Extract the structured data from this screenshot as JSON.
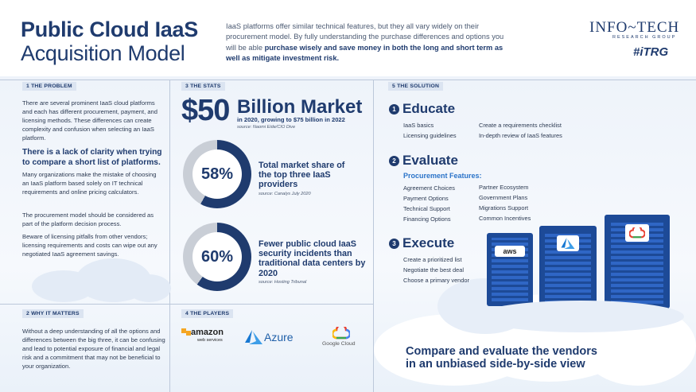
{
  "header": {
    "title_line1": "Public Cloud IaaS",
    "title_line2": "Acquisition Model",
    "desc_normal": "IaaS platforms offer similar technical features, but they all vary widely on their procurement model. By fully understanding the purchase differences and options you will be able ",
    "desc_bold": "purchase wisely and save money in both the long and short term as well as mitigate investment risk.",
    "logo_main": "INFO~TECH",
    "logo_sub": "RESEARCH GROUP",
    "logo_tag": "#iTRG"
  },
  "problem": {
    "label": "1 THE PROBLEM",
    "p1": "There are several prominent IaaS cloud platforms and each has different procurement, payment, and licensing methods. These differences can create complexity and confusion when selecting an IaaS platform.",
    "highlight": "There is a lack of clarity when trying to compare a short list of platforms.",
    "p2": "Many organizations make the mistake of choosing an IaaS platform based solely on IT technical requirements and online pricing calculators.",
    "p3": "The procurement model should be considered as part of the platform decision process.",
    "p4": "Beware of licensing pitfalls from other vendors; licensing requirements and costs can wipe out any negotiated IaaS agreement savings."
  },
  "why": {
    "label": "2 WHY IT MATTERS",
    "text": "Without a deep understanding of all the options and differences between the big three, it can be confusing and lead to potential exposure of financial and legal risk and a commitment that may not be beneficial to your organization."
  },
  "stats": {
    "label": "3 THE STATS",
    "market_value": "$50",
    "market_label": "Billion Market",
    "market_sub": "in 2020, growing to $75 billion in 2022",
    "market_src": "source: Naomi Eide/CIO Dive",
    "share_pct": "58%",
    "share_fraction": 0.58,
    "share_text": "Total market share of the top three IaaS providers",
    "share_src": "source: Canalys July 2020",
    "incident_pct": "60%",
    "incident_fraction": 0.6,
    "incident_text": "Fewer public cloud IaaS security incidents than traditional data centers by 2020",
    "incident_src": "source: Hosting Tribunal"
  },
  "players": {
    "label": "4 THE PLAYERS",
    "amazon": "amazon",
    "amazon_sub": "web services",
    "azure": "Azure",
    "google": "Google Cloud"
  },
  "solution": {
    "label": "5 THE SOLUTION",
    "s1_num": "1",
    "s1_title": "Educate",
    "s1_items": [
      "IaaS basics",
      "Licensing guidelines",
      "Create a requirements checklist",
      "In-depth review of IaaS features"
    ],
    "s2_num": "2",
    "s2_title": "Evaluate",
    "pf_title": "Procurement Features:",
    "s2_items": [
      "Agreement Choices",
      "Payment Options",
      "Technical Support",
      "Financing Options",
      "Partner Ecosystem",
      "Government Plans",
      "Migrations Support",
      "Common  Incentives"
    ],
    "s3_num": "3",
    "s3_title": "Execute",
    "s3_items": [
      "Create a prioritized list",
      "Negotiate the best deal",
      "Choose a primary vendor"
    ],
    "compare_l1": "Compare and evaluate the vendors",
    "compare_l2": "in an unbiased side-by-side view",
    "server_aws": "aws"
  },
  "colors": {
    "navy": "#1f3b6e",
    "accent_blue": "#2a73c9",
    "ring_gray": "#c9ced6"
  }
}
